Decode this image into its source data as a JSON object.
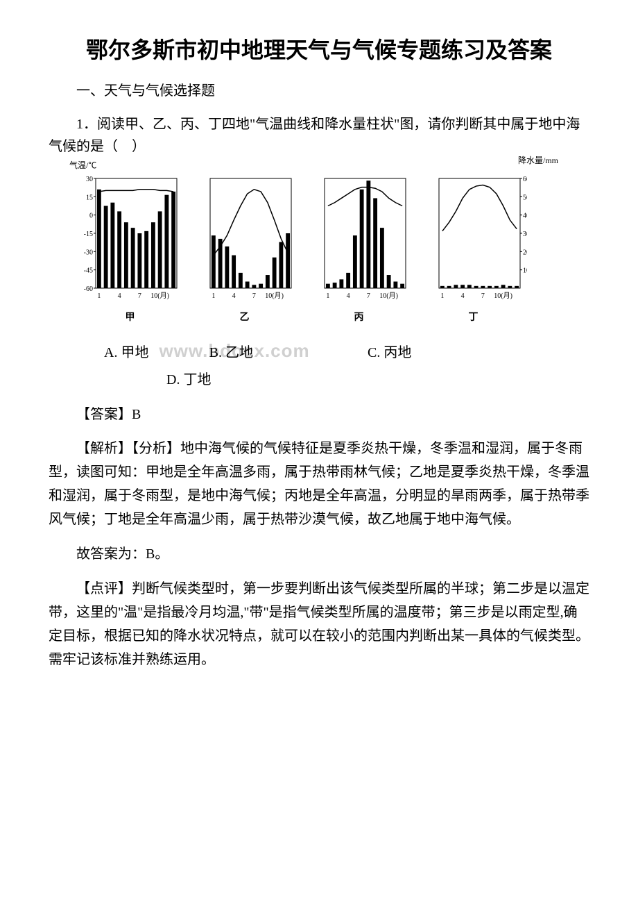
{
  "title": "鄂尔多斯市初中地理天气与气候专题练习及答案",
  "section_heading": "一、天气与气候选择题",
  "question": {
    "number": "1．",
    "text": "阅读甲、乙、丙、丁四地\"气温曲线和降水量柱状\"图，请你判断其中属于地中海气候的是（　）"
  },
  "charts": {
    "temp_axis_label": "气温/℃",
    "precip_axis_label_line1": "降水量/mm",
    "temp_axis_values": [
      "30",
      "15",
      "0",
      "-15",
      "-30",
      "-45",
      "-60"
    ],
    "precip_axis_values": [
      "600",
      "500",
      "400",
      "300",
      "200",
      "100"
    ],
    "x_axis_labels": [
      "1",
      "4",
      "7",
      "10(月)"
    ],
    "panels": [
      {
        "label": "甲",
        "temp_y": [
          12,
          11,
          11,
          11,
          11,
          11,
          10,
          10,
          10,
          11,
          11,
          12
        ],
        "precip_heights": [
          90,
          75,
          78,
          70,
          60,
          55,
          50,
          52,
          60,
          70,
          85,
          88
        ]
      },
      {
        "label": "乙",
        "temp_y": [
          70,
          62,
          52,
          38,
          25,
          14,
          10,
          12,
          22,
          38,
          55,
          68
        ],
        "precip_heights": [
          48,
          45,
          38,
          30,
          14,
          6,
          3,
          4,
          12,
          28,
          42,
          50
        ]
      },
      {
        "label": "丙",
        "temp_y": [
          25,
          22,
          18,
          14,
          10,
          8,
          8,
          9,
          12,
          18,
          22,
          25
        ],
        "precip_heights": [
          4,
          5,
          8,
          14,
          48,
          90,
          98,
          82,
          55,
          12,
          6,
          4
        ]
      },
      {
        "label": "丁",
        "temp_y": [
          48,
          40,
          30,
          18,
          10,
          7,
          6,
          8,
          14,
          25,
          38,
          46
        ],
        "precip_heights": [
          2,
          2,
          3,
          3,
          3,
          2,
          2,
          2,
          2,
          3,
          2,
          2
        ]
      }
    ],
    "bar_color": "#000000",
    "line_color": "#000000",
    "chart_bg": "#ffffff",
    "border_color": "#000000"
  },
  "options": {
    "a": "A. 甲地",
    "b": "B. 乙地",
    "c": "C. 丙地",
    "d": "D. 丁地"
  },
  "watermark": "www.bdocx.com",
  "answer": "【答案】B",
  "explanation1": "【解析】【分析】地中海气候的气候特征是夏季炎热干燥，冬季温和湿润，属于冬雨型，读图可知：甲地是全年高温多雨，属于热带雨林气候；乙地是夏季炎热干燥，冬季温和湿润，属于冬雨型，是地中海气候；丙地是全年高温，分明显的旱雨两季，属于热带季风气候；丁地是全年高温少雨，属于热带沙漠气候，故乙地属于地中海气候。",
  "explanation2": "故答案为：B。",
  "explanation3": "【点评】判断气候类型时，第一步要判断出该气候类型所属的半球；第二步是以温定带，这里的\"温\"是指最冷月均温,\"带\"是指气候类型所属的温度带；第三步是以雨定型,确定目标，根据已知的降水状况特点，就可以在较小的范围内判断出某一具体的气候类型。需牢记该标准并熟练运用。"
}
